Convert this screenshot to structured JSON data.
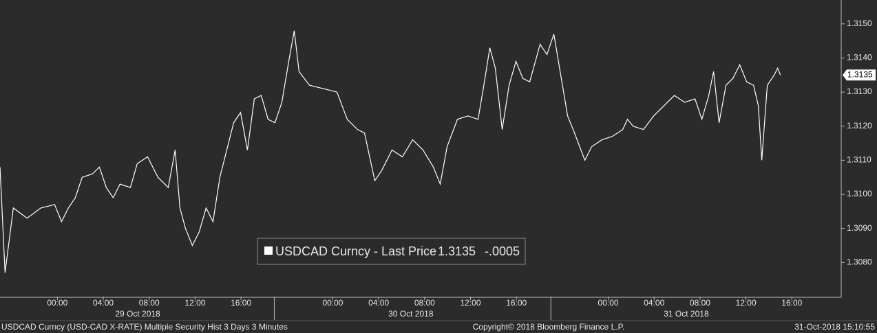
{
  "chart_data": {
    "type": "line",
    "x": [
      -5.0,
      -4.56,
      -3.84,
      -2.64,
      -1.44,
      -0.24,
      0.36,
      0.96,
      1.56,
      2.16,
      3.06,
      3.66,
      4.26,
      4.86,
      5.46,
      6.36,
      6.96,
      7.86,
      8.76,
      9.66,
      10.26,
      10.68,
      11.16,
      11.76,
      12.36,
      12.96,
      13.56,
      14.16,
      14.76,
      15.36,
      15.96,
      16.56,
      17.16,
      17.76,
      18.36,
      18.96,
      19.56,
      20.16,
      20.64,
      21.06,
      21.96,
      23.16,
      24.36,
      25.26,
      26.16,
      26.76,
      27.66,
      28.26,
      29.16,
      30.06,
      30.96,
      31.86,
      32.76,
      33.36,
      33.96,
      34.86,
      35.76,
      36.66,
      37.26,
      37.68,
      38.16,
      38.76,
      39.36,
      39.96,
      40.56,
      41.16,
      42.06,
      42.66,
      43.26,
      43.86,
      44.46,
      45.06,
      45.96,
      46.56,
      47.46,
      48.36,
      49.26,
      49.68,
      50.16,
      51.06,
      51.96,
      52.86,
      53.76,
      54.66,
      55.56,
      56.16,
      56.76,
      57.18,
      57.66,
      58.26,
      58.86,
      59.46,
      60.06,
      60.66,
      61.08,
      61.38,
      61.86,
      62.46,
      62.76,
      63.0
    ],
    "series": [
      {
        "name": "USDCAD Curncy - Last Price",
        "color": "#ffffff",
        "values": [
          1.3108,
          1.3077,
          1.3096,
          1.3093,
          1.3096,
          1.3097,
          1.3092,
          1.3096,
          1.3099,
          1.3105,
          1.3106,
          1.3108,
          1.3102,
          1.3099,
          1.3103,
          1.3102,
          1.3109,
          1.3111,
          1.3105,
          1.3102,
          1.3113,
          1.3096,
          1.309,
          1.3085,
          1.3089,
          1.3096,
          1.3092,
          1.3105,
          1.3113,
          1.3121,
          1.3124,
          1.3113,
          1.3128,
          1.3129,
          1.3122,
          1.3121,
          1.3127,
          1.3139,
          1.3148,
          1.3136,
          1.3132,
          1.3131,
          1.313,
          1.3122,
          1.3119,
          1.3118,
          1.3104,
          1.3107,
          1.3113,
          1.3111,
          1.3116,
          1.3113,
          1.3108,
          1.3103,
          1.3114,
          1.3122,
          1.3123,
          1.3122,
          1.3134,
          1.3143,
          1.3137,
          1.3119,
          1.3132,
          1.3139,
          1.3134,
          1.3133,
          1.3144,
          1.3141,
          1.3147,
          1.3135,
          1.3123,
          1.3118,
          1.311,
          1.3114,
          1.3116,
          1.3117,
          1.3119,
          1.3122,
          1.312,
          1.3119,
          1.3123,
          1.3126,
          1.3129,
          1.3127,
          1.3128,
          1.3122,
          1.3129,
          1.3136,
          1.3121,
          1.3132,
          1.3134,
          1.3138,
          1.3133,
          1.3132,
          1.3126,
          1.311,
          1.3132,
          1.3135,
          1.3137,
          1.3135
        ],
        "last": {
          "value": 1.3135,
          "label": "1.3135"
        },
        "change": {
          "value": -0.0005,
          "label": "-.0005"
        }
      }
    ],
    "xlim": [
      -5,
      68.3
    ],
    "xticks": [
      {
        "value": 0,
        "label": "00:00"
      },
      {
        "value": 4,
        "label": "04:00"
      },
      {
        "value": 8,
        "label": "08:00"
      },
      {
        "value": 12,
        "label": "12:00"
      },
      {
        "value": 16,
        "label": "16:00"
      },
      {
        "value": 24,
        "label": "00:00"
      },
      {
        "value": 28,
        "label": "04:00"
      },
      {
        "value": 32,
        "label": "08:00"
      },
      {
        "value": 36,
        "label": "12:00"
      },
      {
        "value": 40,
        "label": "16:00"
      },
      {
        "value": 48,
        "label": "00:00"
      },
      {
        "value": 52,
        "label": "04:00"
      },
      {
        "value": 56,
        "label": "08:00"
      },
      {
        "value": 60,
        "label": "12:00"
      },
      {
        "value": 64,
        "label": "16:00"
      }
    ],
    "day_labels": [
      {
        "value": 7,
        "label": "29 Oct 2018"
      },
      {
        "value": 30.8,
        "label": "30 Oct 2018"
      },
      {
        "value": 54.8,
        "label": "31 Oct 2018"
      }
    ],
    "session_breaks": [
      18.9,
      43
    ],
    "ylim": [
      1.307,
      1.3157
    ],
    "yticks": [
      {
        "value": 1.308,
        "label": "1.3080"
      },
      {
        "value": 1.309,
        "label": "1.3090"
      },
      {
        "value": 1.31,
        "label": "1.3100"
      },
      {
        "value": 1.311,
        "label": "1.3110"
      },
      {
        "value": 1.312,
        "label": "1.3120"
      },
      {
        "value": 1.313,
        "label": "1.3130"
      },
      {
        "value": 1.314,
        "label": "1.3140"
      },
      {
        "value": 1.315,
        "label": "1.3150"
      }
    ],
    "footer": {
      "left": "USDCAD Curncy (USD-CAD X-RATE) Multiple Security Hist  3 Days 3 Minutes",
      "center": "Copyright© 2018 Bloomberg Finance L.P.",
      "right": "31-Oct-2018 15:10:55"
    }
  }
}
